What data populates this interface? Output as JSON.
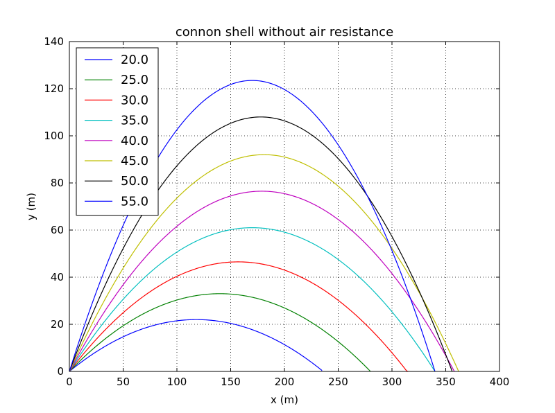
{
  "chart_data": {
    "type": "line",
    "title": "connon shell without air resistance",
    "xlabel": "x (m)",
    "ylabel": "y (m)",
    "xlim": [
      0,
      400
    ],
    "ylim": [
      0,
      140
    ],
    "xticks": [
      0,
      50,
      100,
      150,
      200,
      250,
      300,
      350,
      400
    ],
    "yticks": [
      0,
      20,
      40,
      60,
      80,
      100,
      120,
      140
    ],
    "grid": true,
    "legend_position": "top-left",
    "series": [
      {
        "name": "20.0",
        "color": "#0000ff",
        "range": 235,
        "peak_x": 118,
        "peak_y": 22
      },
      {
        "name": "25.0",
        "color": "#008000",
        "range": 280,
        "peak_x": 140,
        "peak_y": 33
      },
      {
        "name": "30.0",
        "color": "#ff0000",
        "range": 315,
        "peak_x": 157,
        "peak_y": 46.5
      },
      {
        "name": "35.0",
        "color": "#00bfbf",
        "range": 340,
        "peak_x": 170,
        "peak_y": 61
      },
      {
        "name": "40.0",
        "color": "#bf00bf",
        "range": 358,
        "peak_x": 179,
        "peak_y": 76.5
      },
      {
        "name": "45.0",
        "color": "#bfbf00",
        "range": 362,
        "peak_x": 181,
        "peak_y": 92
      },
      {
        "name": "50.0",
        "color": "#000000",
        "range": 356,
        "peak_x": 178,
        "peak_y": 108
      },
      {
        "name": "55.0",
        "color": "#0000ff",
        "range": 340,
        "peak_x": 170,
        "peak_y": 123.5
      }
    ]
  }
}
